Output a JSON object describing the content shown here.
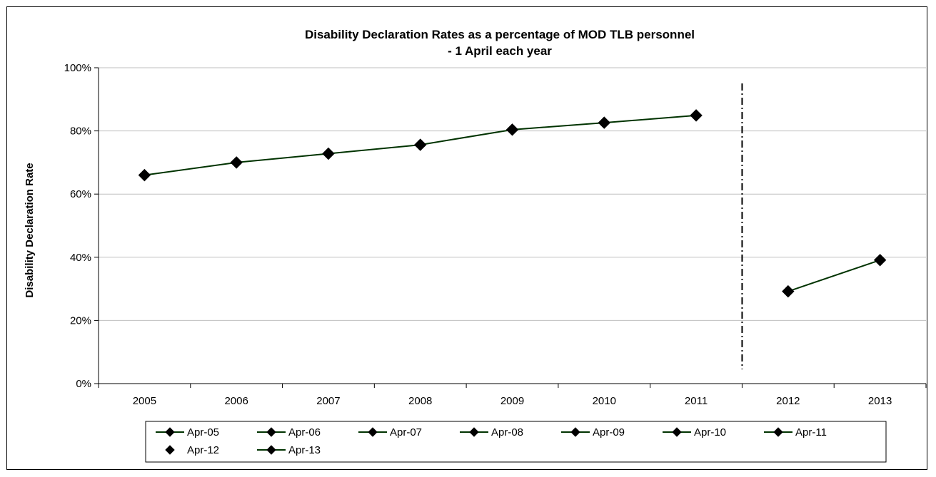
{
  "chart_data": {
    "type": "line",
    "title_line1": "Disability Declaration Rates as a percentage of MOD TLB personnel",
    "title_line2": "- 1 April each year",
    "xlabel": "",
    "ylabel": "Disability Declaration Rate",
    "ylim": [
      0,
      100
    ],
    "yticks": [
      "0%",
      "20%",
      "40%",
      "60%",
      "80%",
      "100%"
    ],
    "categories": [
      "2005",
      "2006",
      "2007",
      "2008",
      "2009",
      "2010",
      "2011",
      "2012",
      "2013"
    ],
    "grid": true,
    "legend_position": "bottom",
    "legend": [
      "Apr-05",
      "Apr-06",
      "Apr-07",
      "Apr-08",
      "Apr-09",
      "Apr-10",
      "Apr-11",
      "Apr-12",
      "Apr-13"
    ],
    "series": [
      {
        "values": [
          66,
          70,
          72.8,
          75.6,
          80.4,
          82.6,
          84.9,
          null,
          null
        ]
      },
      {
        "values": [
          null,
          null,
          null,
          null,
          null,
          null,
          null,
          29.2,
          39.1
        ]
      }
    ],
    "annotation": "dash-dot vertical separator between 2011 and 2012",
    "colors": {
      "line": "#003300",
      "marker": "#000000",
      "grid": "#bfbfbf"
    }
  }
}
